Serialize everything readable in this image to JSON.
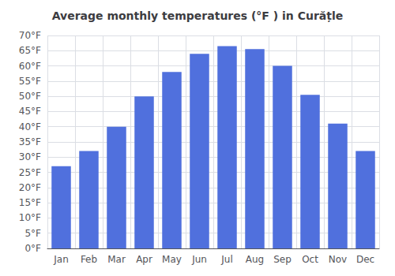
{
  "chart_data": {
    "type": "bar",
    "title": "Average monthly temperatures (°F ) in Curățle",
    "categories": [
      "Jan",
      "Feb",
      "Mar",
      "Apr",
      "May",
      "Jun",
      "Jul",
      "Aug",
      "Sep",
      "Oct",
      "Nov",
      "Dec"
    ],
    "values": [
      27,
      32,
      40,
      50,
      58,
      64,
      66.5,
      65.5,
      60,
      50.5,
      41,
      32
    ],
    "ylim": [
      0,
      70
    ],
    "yticks": [
      {
        "value": 0,
        "label": "0°F"
      },
      {
        "value": 5,
        "label": "5°F"
      },
      {
        "value": 10,
        "label": "10°F"
      },
      {
        "value": 15,
        "label": "15°F"
      },
      {
        "value": 20,
        "label": "20°F"
      },
      {
        "value": 25,
        "label": "25°F"
      },
      {
        "value": 30,
        "label": "30°F"
      },
      {
        "value": 35,
        "label": "35°F"
      },
      {
        "value": 40,
        "label": "40°F"
      },
      {
        "value": 45,
        "label": "45°F"
      },
      {
        "value": 50,
        "label": "50°F"
      },
      {
        "value": 55,
        "label": "55°F"
      },
      {
        "value": 60,
        "label": "60°F"
      },
      {
        "value": 65,
        "label": "65°F"
      },
      {
        "value": 70,
        "label": "70°F"
      }
    ],
    "grid": true
  }
}
